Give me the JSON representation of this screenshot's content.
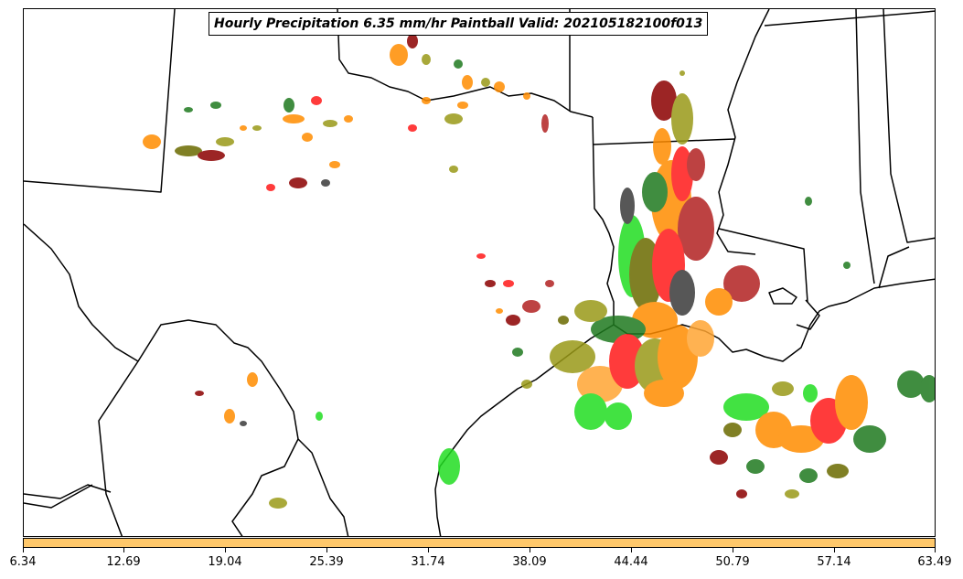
{
  "title": "Hourly Precipitation 6.35 mm/hr Paintball Valid: 202105182100f013",
  "colorbar": {
    "color": "#ffc86b",
    "ticks": [
      "6.34",
      "12.69",
      "19.04",
      "25.39",
      "31.74",
      "38.09",
      "44.44",
      "50.79",
      "57.14",
      "63.49"
    ]
  },
  "colors": {
    "dark_green": "#1f7a1f",
    "light_green": "#22dd22",
    "olive": "#9a9a18",
    "dark_olive": "#6b6b00",
    "orange": "#ff8c00",
    "light_orange": "#ffa533",
    "red": "#ff1a1a",
    "dark_red": "#8b0000",
    "brick": "#b22222",
    "gray": "#3a3a3a",
    "black": "#000000"
  }
}
